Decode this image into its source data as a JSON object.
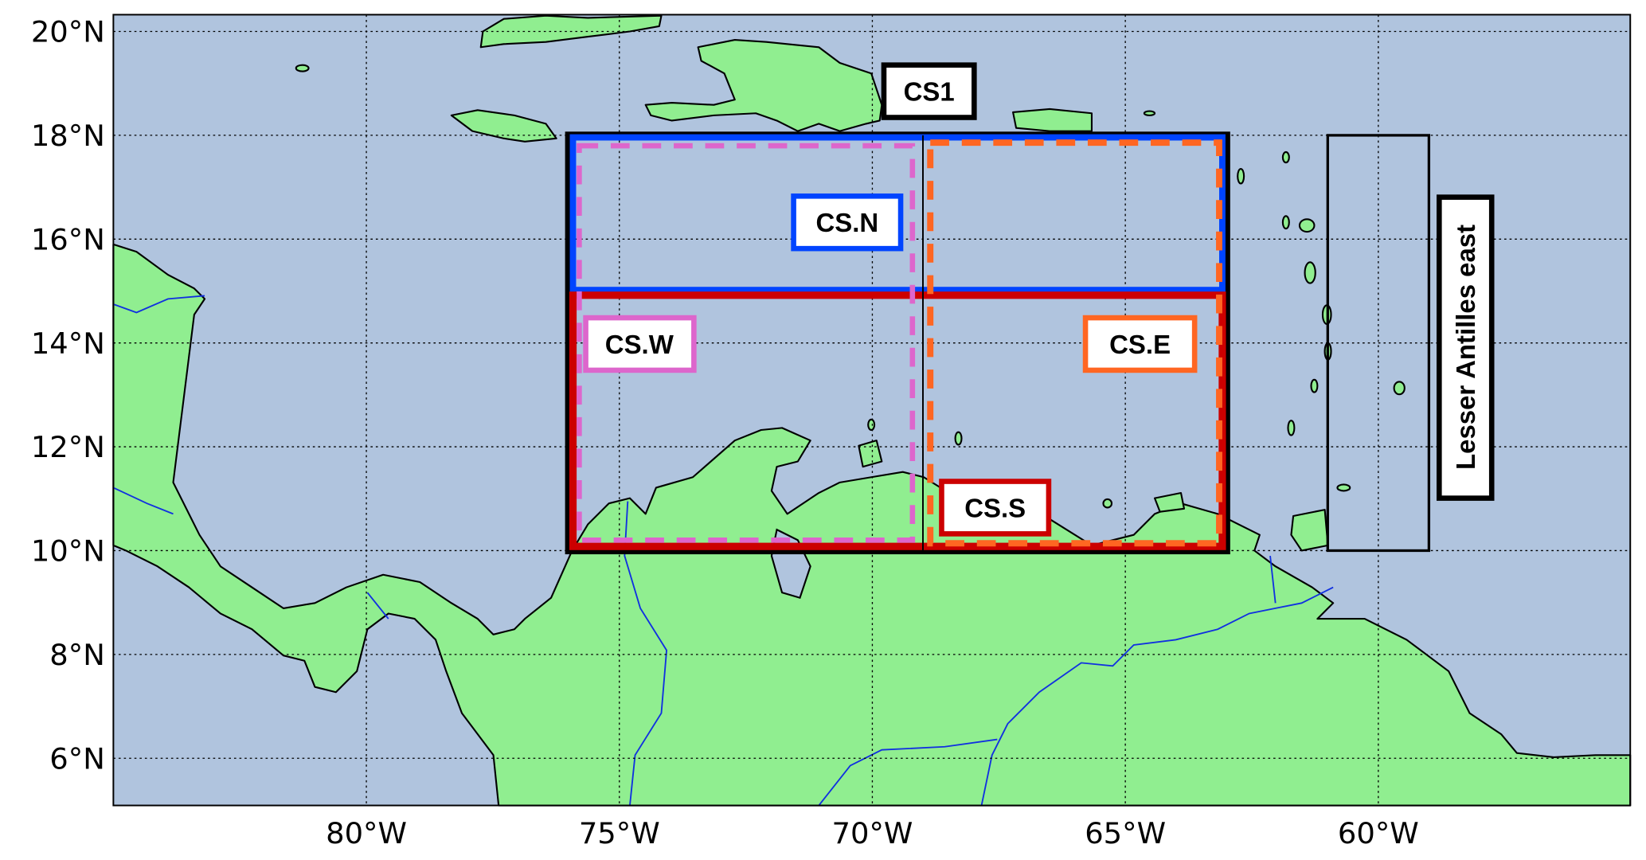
{
  "map": {
    "extent": {
      "lon": [
        -85,
        -55
      ],
      "lat": [
        5,
        20.3
      ]
    },
    "colors": {
      "ocean": "#b0c4de",
      "land": "#90ee90",
      "rivers": "#1030e0"
    },
    "lon_ticks": [
      {
        "value": -80,
        "label": "80°W"
      },
      {
        "value": -75,
        "label": "75°W"
      },
      {
        "value": -70,
        "label": "70°W"
      },
      {
        "value": -65,
        "label": "65°W"
      },
      {
        "value": -60,
        "label": "60°W"
      }
    ],
    "lat_ticks": [
      {
        "value": 20,
        "label": "20°N"
      },
      {
        "value": 18,
        "label": "18°N"
      },
      {
        "value": 16,
        "label": "16°N"
      },
      {
        "value": 14,
        "label": "14°N"
      },
      {
        "value": 12,
        "label": "12°N"
      },
      {
        "value": 10,
        "label": "10°N"
      },
      {
        "value": 8,
        "label": "8°N"
      },
      {
        "value": 6,
        "label": "6°N"
      }
    ],
    "regions": [
      {
        "name": "CS1",
        "lon": [
          -76,
          -63
        ],
        "lat": [
          10,
          18
        ],
        "color": "#000000",
        "style": "solid"
      },
      {
        "name": "CS.N",
        "lon": [
          -76,
          -63
        ],
        "lat": [
          15,
          18
        ],
        "color": "#0044ff",
        "style": "solid"
      },
      {
        "name": "CS.S",
        "lon": [
          -76,
          -63
        ],
        "lat": [
          10,
          15
        ],
        "color": "#cc0000",
        "style": "solid"
      },
      {
        "name": "CS.W",
        "lon": [
          -76,
          -69
        ],
        "lat": [
          10,
          18
        ],
        "color": "#dd66cc",
        "style": "dashed"
      },
      {
        "name": "CS.E",
        "lon": [
          -69,
          -63
        ],
        "lat": [
          10,
          18
        ],
        "color": "#ff6622",
        "style": "dashed"
      },
      {
        "name": "Lesser Antilles east",
        "lon": [
          -61,
          -59
        ],
        "lat": [
          10,
          18
        ],
        "color": "#000000",
        "style": "solid-thin"
      }
    ],
    "labels": {
      "cs1": "CS1",
      "csn": "CS.N",
      "csw": "CS.W",
      "cse": "CS.E",
      "css": "CS.S",
      "lae": "Lesser Antilles east"
    }
  }
}
